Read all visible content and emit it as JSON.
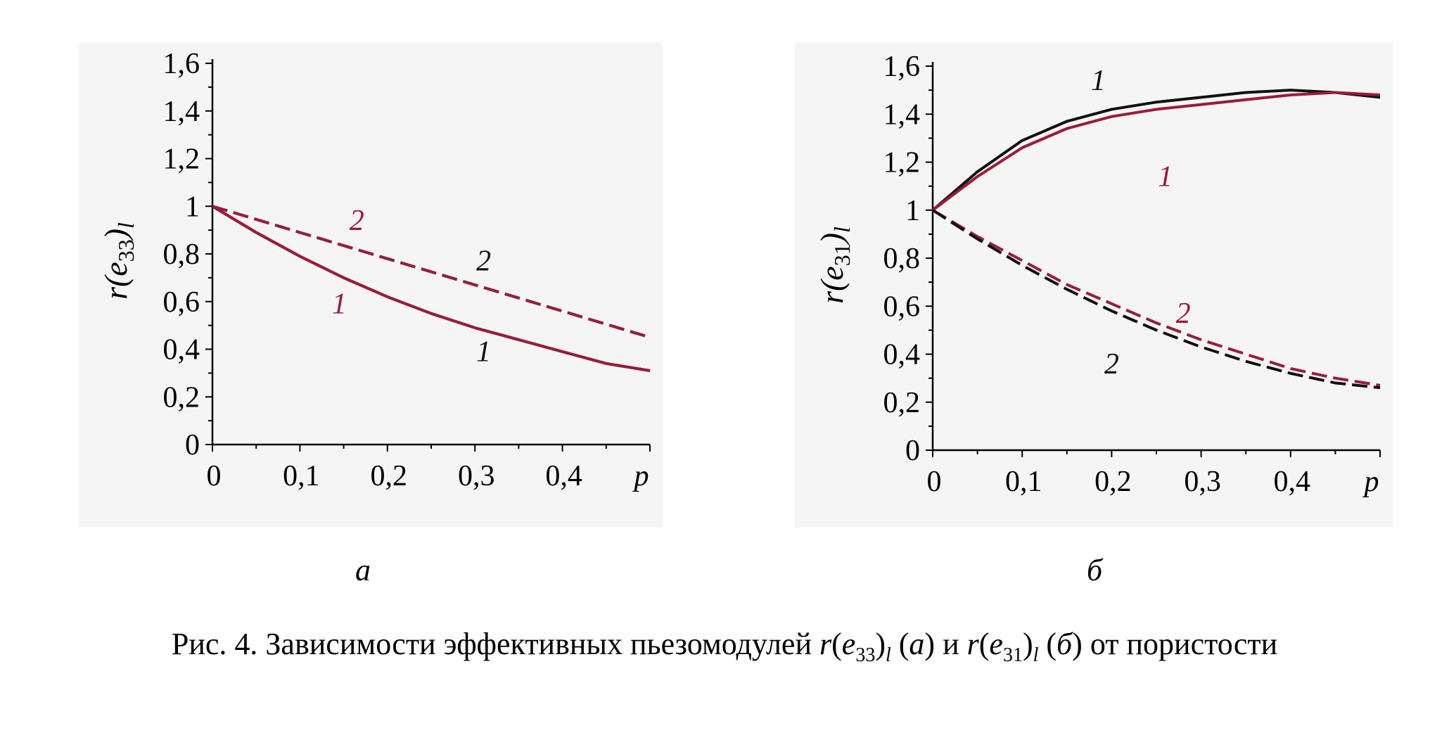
{
  "colors": {
    "black": "#111111",
    "maroon": "#9b1b3a"
  },
  "chart_data": [
    {
      "type": "line",
      "panel": "а",
      "ylabel": "r(e33)l",
      "xlabel": "p",
      "xlim": [
        0,
        0.5
      ],
      "ylim": [
        0,
        1.6
      ],
      "xticks": [
        "0",
        "0,1",
        "0,2",
        "0,3",
        "0,4",
        "p"
      ],
      "yticks": [
        "0",
        "0,2",
        "0,4",
        "0,6",
        "0,8",
        "1",
        "1,2",
        "1,4",
        "1,6"
      ],
      "series": [
        {
          "name": "1",
          "color": "#111111",
          "style": "solid",
          "x": [
            0,
            0.05,
            0.1,
            0.15,
            0.2,
            0.25,
            0.3,
            0.35,
            0.4,
            0.45,
            0.5
          ],
          "y": [
            1.0,
            0.89,
            0.79,
            0.7,
            0.62,
            0.55,
            0.49,
            0.44,
            0.39,
            0.34,
            0.31
          ]
        },
        {
          "name": "1",
          "color": "#9b1b3a",
          "style": "solid",
          "x": [
            0,
            0.05,
            0.1,
            0.15,
            0.2,
            0.25,
            0.3,
            0.35,
            0.4,
            0.45,
            0.5
          ],
          "y": [
            1.0,
            0.89,
            0.79,
            0.7,
            0.62,
            0.55,
            0.49,
            0.44,
            0.39,
            0.34,
            0.31
          ]
        },
        {
          "name": "2",
          "color": "#111111",
          "style": "dashed",
          "x": [
            0,
            0.1,
            0.2,
            0.3,
            0.4,
            0.5
          ],
          "y": [
            1.0,
            0.89,
            0.78,
            0.67,
            0.56,
            0.45
          ]
        },
        {
          "name": "2",
          "color": "#9b1b3a",
          "style": "dashed",
          "x": [
            0,
            0.1,
            0.2,
            0.3,
            0.4,
            0.5
          ],
          "y": [
            1.0,
            0.89,
            0.78,
            0.67,
            0.56,
            0.45
          ]
        }
      ],
      "labels": [
        {
          "text": "2",
          "color": "#9b1b3a",
          "x": 0.165,
          "y": 0.9
        },
        {
          "text": "2",
          "color": "#111111",
          "x": 0.31,
          "y": 0.73
        },
        {
          "text": "1",
          "color": "#9b1b3a",
          "x": 0.145,
          "y": 0.55
        },
        {
          "text": "1",
          "color": "#111111",
          "x": 0.31,
          "y": 0.35
        }
      ]
    },
    {
      "type": "line",
      "panel": "б",
      "ylabel": "r(e31)l",
      "xlabel": "p",
      "xlim": [
        0,
        0.5
      ],
      "ylim": [
        0,
        1.6
      ],
      "xticks": [
        "0",
        "0,1",
        "0,2",
        "0,3",
        "0,4",
        "p"
      ],
      "yticks": [
        "0",
        "0,2",
        "0,4",
        "0,6",
        "0,8",
        "1",
        "1,2",
        "1,4",
        "1,6"
      ],
      "series": [
        {
          "name": "1",
          "color": "#111111",
          "style": "solid",
          "x": [
            0,
            0.05,
            0.1,
            0.15,
            0.2,
            0.25,
            0.3,
            0.35,
            0.4,
            0.45,
            0.5
          ],
          "y": [
            1.0,
            1.16,
            1.29,
            1.37,
            1.42,
            1.45,
            1.47,
            1.49,
            1.5,
            1.49,
            1.47
          ]
        },
        {
          "name": "1",
          "color": "#9b1b3a",
          "style": "solid",
          "x": [
            0,
            0.05,
            0.1,
            0.15,
            0.2,
            0.25,
            0.3,
            0.35,
            0.4,
            0.45,
            0.5
          ],
          "y": [
            1.0,
            1.14,
            1.26,
            1.34,
            1.39,
            1.42,
            1.44,
            1.46,
            1.48,
            1.49,
            1.48
          ]
        },
        {
          "name": "2",
          "color": "#9b1b3a",
          "style": "dashed",
          "x": [
            0,
            0.05,
            0.1,
            0.15,
            0.2,
            0.25,
            0.3,
            0.35,
            0.4,
            0.45,
            0.5
          ],
          "y": [
            1.0,
            0.89,
            0.79,
            0.69,
            0.61,
            0.53,
            0.46,
            0.4,
            0.34,
            0.3,
            0.27
          ]
        },
        {
          "name": "2",
          "color": "#111111",
          "style": "dashed",
          "x": [
            0,
            0.05,
            0.1,
            0.15,
            0.2,
            0.25,
            0.3,
            0.35,
            0.4,
            0.45,
            0.5
          ],
          "y": [
            1.0,
            0.88,
            0.77,
            0.67,
            0.58,
            0.5,
            0.43,
            0.37,
            0.32,
            0.28,
            0.26
          ]
        }
      ],
      "labels": [
        {
          "text": "1",
          "color": "#111111",
          "x": 0.185,
          "y": 1.5
        },
        {
          "text": "1",
          "color": "#9b1b3a",
          "x": 0.26,
          "y": 1.1
        },
        {
          "text": "2",
          "color": "#9b1b3a",
          "x": 0.28,
          "y": 0.53
        },
        {
          "text": "2",
          "color": "#111111",
          "x": 0.2,
          "y": 0.32
        }
      ]
    }
  ],
  "sublabels": {
    "a": "а",
    "b": "б"
  },
  "caption": {
    "prefix": "Рис. 4. Зависимости эффективных пьезомодулей ",
    "r1": "r",
    "e1": "e",
    "sub1": "33",
    "subl1": "l",
    "mid1": " (",
    "pa": "а",
    "mid2": ") и ",
    "r2": "r",
    "e2": "e",
    "sub2": "31",
    "subl2": "l",
    "mid3": " (",
    "pb": "б",
    "suffix": ") от пористости"
  }
}
